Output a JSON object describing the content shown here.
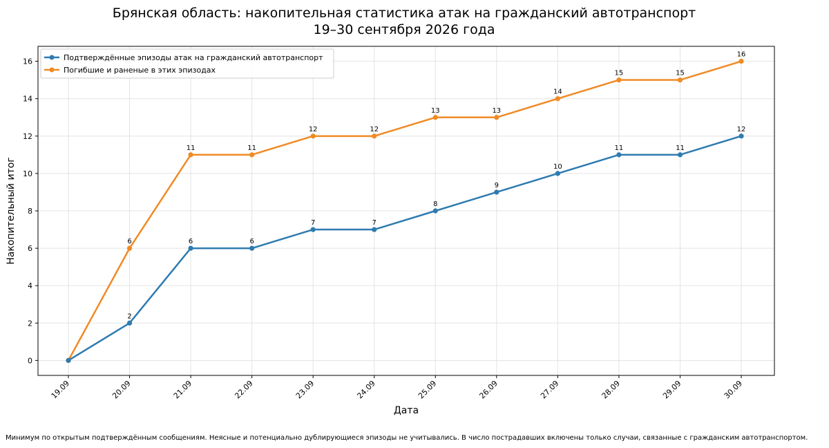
{
  "chart_data": {
    "type": "line",
    "title": "Брянская область: накопительная статистика атак на гражданский автотранспорт",
    "subtitle": "19–30 сентября 2026 года",
    "xlabel": "Дата",
    "ylabel": "Накопительный итог",
    "categories": [
      "19.09",
      "20.09",
      "21.09",
      "22.09",
      "23.09",
      "24.09",
      "25.09",
      "26.09",
      "27.09",
      "28.09",
      "29.09",
      "30.09"
    ],
    "ylim": [
      -0.8,
      16.8
    ],
    "yticks": [
      0,
      2,
      4,
      6,
      8,
      10,
      12,
      14,
      16
    ],
    "grid": true,
    "legend_position": "top-left",
    "series": [
      {
        "name": "Подтверждённые эпизоды атак на гражданский автотранспорт",
        "color": "#2e7bb0",
        "values": [
          0,
          2,
          6,
          6,
          7,
          7,
          8,
          9,
          10,
          11,
          11,
          12
        ]
      },
      {
        "name": "Погибшие и раненые в этих эпизодах",
        "color": "#f08a24",
        "values": [
          0,
          6,
          11,
          11,
          12,
          12,
          13,
          13,
          14,
          15,
          15,
          16
        ]
      }
    ]
  },
  "footnote": "Минимум по открытым подтверждённым сообщениям. Неясные и потенциально дублирующиеся эпизоды не учитывались. В число пострадавших включены только случаи, связанные с гражданским автотранспортом."
}
